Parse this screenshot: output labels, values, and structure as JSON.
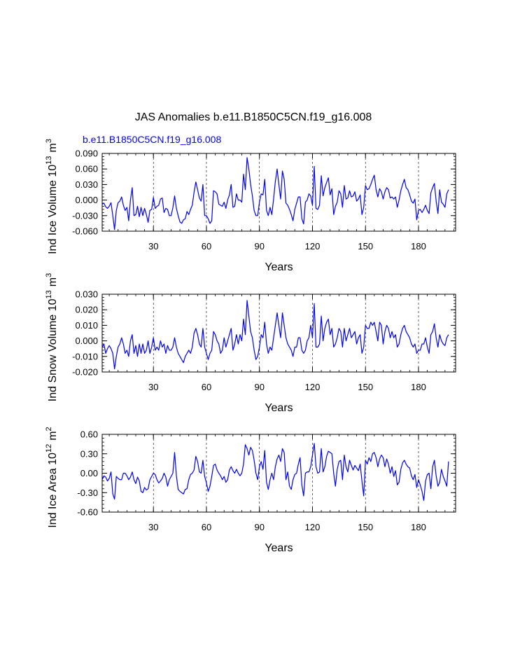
{
  "main_title": "JAS Anomalies b.e11.B1850C5CN.f19_g16.008",
  "case_label": "b.e11.B1850C5CN.f19_g16.008",
  "colors": {
    "line": "#0000ff",
    "axis": "#000000",
    "case_label": "#0000ff"
  },
  "chart_data": [
    {
      "type": "line",
      "ylabel": "Ind Ice Volume 10",
      "ylabel_exp": "13",
      "ylabel_unit": "m",
      "ylabel_unit_exp": "3",
      "xlabel": "Years",
      "xlim": [
        1,
        201
      ],
      "ylim": [
        -0.06,
        0.09
      ],
      "yticks": [
        -0.06,
        -0.03,
        0.0,
        0.03,
        0.06,
        0.09
      ],
      "ytick_labels": [
        "-0.060",
        "-0.030",
        "0.000",
        "0.030",
        "0.060",
        "0.090"
      ],
      "xticks": [
        30,
        60,
        90,
        120,
        150,
        180
      ],
      "xtick_labels": [
        "30",
        "60",
        "90",
        "120",
        "150",
        "180"
      ],
      "grid_x": [
        30,
        60,
        90,
        120,
        150,
        180
      ],
      "series": [
        {
          "name": "ice_volume",
          "x_start": 1,
          "values": [
            -0.008,
            -0.006,
            -0.013,
            -0.016,
            -0.012,
            -0.005,
            -0.03,
            -0.057,
            -0.02,
            -0.005,
            -0.002,
            0.006,
            -0.01,
            -0.02,
            -0.014,
            -0.04,
            0.0,
            0.024,
            -0.03,
            -0.028,
            -0.012,
            -0.032,
            -0.014,
            -0.03,
            -0.016,
            -0.028,
            -0.043,
            -0.02,
            -0.018,
            0.005,
            -0.016,
            -0.012,
            -0.01,
            0.002,
            0.004,
            -0.024,
            -0.016,
            -0.018,
            -0.03,
            -0.03,
            -0.015,
            0.008,
            -0.016,
            -0.03,
            -0.042,
            -0.045,
            -0.038,
            -0.036,
            -0.022,
            -0.028,
            -0.018,
            -0.01,
            0.015,
            0.035,
            0.02,
            0.004,
            -0.002,
            0.03,
            -0.03,
            -0.03,
            -0.036,
            -0.045,
            -0.04,
            0.018,
            0.016,
            0.012,
            -0.008,
            -0.01,
            -0.012,
            -0.004,
            -0.016,
            0.0,
            0.01,
            0.03,
            -0.014,
            -0.012,
            0.012,
            0.0,
            0.0,
            -0.004,
            0.05,
            0.02,
            0.082,
            0.06,
            0.03,
            0.008,
            -0.02,
            -0.03,
            -0.03,
            -0.004,
            0.012,
            0.01,
            0.04,
            -0.02,
            -0.03,
            -0.014,
            -0.028,
            0.002,
            0.036,
            0.06,
            0.03,
            0.002,
            0.056,
            0.04,
            -0.006,
            -0.01,
            -0.018,
            -0.028,
            -0.04,
            -0.018,
            -0.006,
            0.006,
            0.006,
            -0.036,
            -0.046,
            -0.004,
            0.0,
            0.012,
            0.008,
            -0.01,
            0.065,
            -0.016,
            -0.018,
            -0.01,
            0.047,
            0.008,
            0.024,
            0.034,
            0.043,
            0.01,
            0.022,
            -0.028,
            -0.012,
            -0.004,
            0.018,
            0.012,
            -0.014,
            0.028,
            0.002,
            0.004,
            0.018,
            0.006,
            0.008,
            0.016,
            -0.002,
            0.002,
            0.01,
            -0.028,
            -0.014,
            0.028,
            0.02,
            0.022,
            0.03,
            0.04,
            0.048,
            0.02,
            0.006,
            0.022,
            0.016,
            0.002,
            0.016,
            0.024,
            0.02,
            0.004,
            0.006,
            0.002,
            0.006,
            -0.014,
            0.0,
            0.018,
            0.03,
            0.04,
            0.024,
            0.02,
            0.01,
            -0.002,
            -0.006,
            0.002,
            -0.038,
            -0.02,
            -0.018,
            -0.024,
            -0.018,
            -0.01,
            -0.02,
            -0.026,
            0.014,
            0.024,
            0.032,
            -0.002,
            -0.026,
            0.02,
            -0.004,
            -0.008,
            -0.014,
            0.012,
            0.02
          ]
        }
      ]
    },
    {
      "type": "line",
      "ylabel": "Ind Snow Volume 10",
      "ylabel_exp": "13",
      "ylabel_unit": "m",
      "ylabel_unit_exp": "3",
      "xlabel": "Years",
      "xlim": [
        1,
        201
      ],
      "ylim": [
        -0.02,
        0.03
      ],
      "yticks": [
        -0.02,
        -0.01,
        0.0,
        0.01,
        0.02,
        0.03
      ],
      "ytick_labels": [
        "-0.020",
        "-0.010",
        "0.000",
        "0.010",
        "0.020",
        "0.030"
      ],
      "xticks": [
        30,
        60,
        90,
        120,
        150,
        180
      ],
      "xtick_labels": [
        "30",
        "60",
        "90",
        "120",
        "150",
        "180"
      ],
      "grid_x": [
        30,
        60,
        90,
        120,
        150,
        180
      ],
      "series": [
        {
          "name": "snow_volume",
          "x_start": 1,
          "values": [
            -0.004,
            -0.002,
            -0.008,
            -0.005,
            -0.003,
            -0.005,
            -0.008,
            -0.018,
            -0.01,
            -0.004,
            -0.002,
            0.002,
            -0.002,
            -0.008,
            -0.006,
            -0.01,
            0.0,
            0.004,
            -0.008,
            -0.003,
            -0.01,
            -0.002,
            -0.008,
            -0.002,
            -0.008,
            -0.006,
            0.0,
            -0.008,
            -0.004,
            0.002,
            -0.006,
            -0.004,
            -0.006,
            0.0,
            -0.004,
            -0.002,
            -0.008,
            -0.003,
            -0.006,
            -0.006,
            -0.004,
            0.002,
            -0.004,
            -0.008,
            -0.01,
            -0.012,
            -0.014,
            -0.01,
            -0.008,
            -0.006,
            -0.008,
            -0.004,
            0.005,
            0.008,
            0.004,
            -0.002,
            -0.004,
            0.008,
            -0.004,
            -0.008,
            -0.012,
            -0.008,
            -0.006,
            0.006,
            0.004,
            0.0,
            -0.002,
            -0.008,
            -0.006,
            0.002,
            -0.004,
            0.0,
            0.004,
            0.008,
            -0.006,
            -0.002,
            0.004,
            -0.002,
            0.004,
            0.0,
            0.014,
            0.004,
            0.026,
            0.016,
            0.006,
            0.002,
            -0.006,
            -0.012,
            -0.01,
            -0.004,
            0.004,
            0.002,
            0.012,
            -0.002,
            -0.008,
            -0.004,
            -0.006,
            0.002,
            0.01,
            0.018,
            0.01,
            0.002,
            0.018,
            0.01,
            0.002,
            -0.002,
            -0.004,
            -0.006,
            -0.01,
            -0.004,
            -0.004,
            0.002,
            0.002,
            -0.006,
            -0.008,
            -0.006,
            0.0,
            0.002,
            0.01,
            0.002,
            0.024,
            -0.004,
            -0.004,
            -0.002,
            0.016,
            0.0,
            0.008,
            0.012,
            0.014,
            0.004,
            0.008,
            -0.004,
            -0.002,
            0.002,
            0.008,
            0.006,
            -0.004,
            0.008,
            0.0,
            0.004,
            0.008,
            0.002,
            0.004,
            0.006,
            -0.002,
            0.002,
            0.004,
            -0.008,
            -0.004,
            0.01,
            0.008,
            0.008,
            0.012,
            0.01,
            0.012,
            0.006,
            0.0,
            0.012,
            0.01,
            -0.002,
            0.006,
            0.01,
            0.008,
            0.002,
            0.006,
            0.002,
            0.004,
            -0.004,
            -0.002,
            0.004,
            0.008,
            0.01,
            0.006,
            0.004,
            0.002,
            -0.002,
            -0.004,
            -0.002,
            -0.008,
            -0.006,
            -0.006,
            -0.002,
            -0.002,
            0.002,
            -0.004,
            -0.008,
            0.004,
            0.006,
            0.011,
            0.002,
            -0.004,
            0.004,
            0.0,
            -0.002,
            -0.003,
            0.002,
            0.004
          ]
        }
      ]
    },
    {
      "type": "line",
      "ylabel": "Ind Ice Area 10",
      "ylabel_exp": "12",
      "ylabel_unit": "m",
      "ylabel_unit_exp": "2",
      "xlabel": "Years",
      "xlim": [
        1,
        201
      ],
      "ylim": [
        -0.6,
        0.6
      ],
      "yticks": [
        -0.6,
        -0.3,
        0.0,
        0.3,
        0.6
      ],
      "ytick_labels": [
        "-0.60",
        "-0.30",
        "0.00",
        "0.30",
        "0.60"
      ],
      "xticks": [
        30,
        60,
        90,
        120,
        150,
        180
      ],
      "xtick_labels": [
        "30",
        "60",
        "90",
        "120",
        "150",
        "180"
      ],
      "grid_x": [
        30,
        60,
        90,
        120,
        150,
        180
      ],
      "series": [
        {
          "name": "ice_area",
          "x_start": 1,
          "values": [
            -0.1,
            -0.04,
            -0.06,
            -0.12,
            -0.08,
            0.02,
            -0.32,
            -0.4,
            -0.05,
            -0.08,
            -0.1,
            -0.1,
            0.0,
            0.0,
            -0.04,
            -0.1,
            -0.06,
            0.02,
            -0.1,
            -0.16,
            -0.06,
            -0.12,
            -0.28,
            -0.3,
            -0.22,
            -0.26,
            -0.24,
            -0.1,
            -0.05,
            0.0,
            -0.02,
            -0.1,
            -0.15,
            -0.12,
            -0.08,
            0.0,
            -0.06,
            -0.2,
            -0.1,
            -0.05,
            0.0,
            0.32,
            -0.04,
            -0.25,
            -0.28,
            -0.3,
            -0.32,
            -0.25,
            -0.24,
            -0.1,
            -0.02,
            0.0,
            0.05,
            0.26,
            0.18,
            0.02,
            0.0,
            0.2,
            -0.05,
            -0.15,
            -0.28,
            -0.2,
            -0.05,
            0.12,
            0.14,
            0.05,
            0.0,
            -0.04,
            -0.1,
            -0.05,
            -0.14,
            -0.1,
            0.05,
            0.1,
            0.04,
            0.0,
            0.06,
            0.0,
            -0.04,
            0.0,
            0.14,
            0.44,
            0.38,
            0.28,
            0.4,
            0.35,
            0.2,
            0.0,
            -0.1,
            0.1,
            0.18,
            0.06,
            0.35,
            -0.14,
            -0.25,
            -0.1,
            0.0,
            -0.1,
            0.1,
            0.22,
            0.28,
            0.18,
            0.38,
            0.32,
            -0.1,
            0.02,
            -0.2,
            -0.25,
            -0.1,
            -0.02,
            0.0,
            0.14,
            0.24,
            -0.18,
            -0.35,
            0.0,
            0.02,
            0.02,
            0.1,
            0.28,
            0.46,
            0.1,
            0.0,
            0.02,
            0.38,
            0.02,
            0.1,
            0.26,
            0.34,
            0.32,
            0.3,
            0.0,
            -0.2,
            0.06,
            0.18,
            0.2,
            -0.1,
            0.28,
            0.1,
            0.02,
            0.2,
            0.12,
            0.05,
            0.12,
            0.08,
            0.04,
            0.14,
            -0.12,
            -0.35,
            0.2,
            0.14,
            0.24,
            0.18,
            0.3,
            0.32,
            0.24,
            0.1,
            0.22,
            0.28,
            0.24,
            0.1,
            0.22,
            0.14,
            0.0,
            0.1,
            -0.05,
            0.04,
            -0.18,
            -0.14,
            0.06,
            0.16,
            0.2,
            0.14,
            0.1,
            0.08,
            -0.04,
            -0.1,
            -0.02,
            -0.22,
            -0.1,
            -0.18,
            -0.28,
            -0.42,
            -0.12,
            -0.02,
            0.0,
            -0.24,
            0.1,
            0.2,
            -0.04,
            -0.2,
            -0.14,
            0.06,
            -0.05,
            -0.12,
            -0.2,
            0.18
          ]
        }
      ]
    }
  ]
}
